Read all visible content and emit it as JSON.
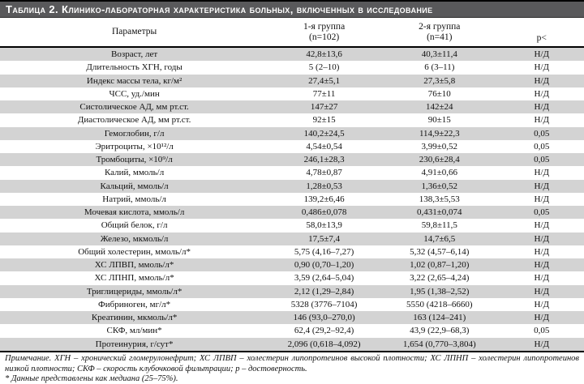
{
  "title": "Таблица 2. Клинико-лабораторная характеристика больных, включенных в исследование",
  "colors": {
    "title_bar": "#59595b",
    "stripe": "#d3d3d3",
    "rule": "#000000"
  },
  "table": {
    "headers": {
      "param": "Параметры",
      "group1_line1": "1-я группа",
      "group1_line2": "(n=102)",
      "group2_line1": "2-я группа",
      "group2_line2": "(n=41)",
      "p": "р<"
    },
    "rows": [
      {
        "param": "Возраст, лет",
        "group1": "42,8±13,6",
        "group2": "40,3±11,4",
        "p": "Н/Д"
      },
      {
        "param": "Длительность ХГН, годы",
        "group1": "5 (2–10)",
        "group2": "6 (3–11)",
        "p": "Н/Д"
      },
      {
        "param": "Индекс массы тела, кг/м²",
        "group1": "27,4±5,1",
        "group2": "27,3±5,8",
        "p": "Н/Д"
      },
      {
        "param": "ЧСС, уд./мин",
        "group1": "77±11",
        "group2": "76±10",
        "p": "Н/Д"
      },
      {
        "param": "Систолическое АД, мм рт.ст.",
        "group1": "147±27",
        "group2": "142±24",
        "p": "Н/Д"
      },
      {
        "param": "Диастолическое АД, мм рт.ст.",
        "group1": "92±15",
        "group2": "90±15",
        "p": "Н/Д"
      },
      {
        "param": "Гемоглобин, г/л",
        "group1": "140,2±24,5",
        "group2": "114,9±22,3",
        "p": "0,05"
      },
      {
        "param": "Эритроциты, ×10¹²/л",
        "group1": "4,54±0,54",
        "group2": "3,99±0,52",
        "p": "0,05"
      },
      {
        "param": "Тромбоциты, ×10⁹/л",
        "group1": "246,1±28,3",
        "group2": "230,6±28,4",
        "p": "0,05"
      },
      {
        "param": "Калий, ммоль/л",
        "group1": "4,78±0,87",
        "group2": "4,91±0,66",
        "p": "Н/Д"
      },
      {
        "param": "Кальций, ммоль/л",
        "group1": "1,28±0,53",
        "group2": "1,36±0,52",
        "p": "Н/Д"
      },
      {
        "param": "Натрий, ммоль/л",
        "group1": "139,2±6,46",
        "group2": "138,3±5,53",
        "p": "Н/Д"
      },
      {
        "param": "Мочевая кислота, ммоль/л",
        "group1": "0,486±0,078",
        "group2": "0,431±0,074",
        "p": "0,05"
      },
      {
        "param": "Общий белок, г/л",
        "group1": "58,0±13,9",
        "group2": "59,8±11,5",
        "p": "Н/Д"
      },
      {
        "param": "Железо, мкмоль/л",
        "group1": "17,5±7,4",
        "group2": "14,7±6,5",
        "p": "Н/Д"
      },
      {
        "param": "Общий холестерин, ммоль/л*",
        "group1": "5,75 (4,16–7,27)",
        "group2": "5,32 (4,57–6,14)",
        "p": "Н/Д"
      },
      {
        "param": "ХС ЛПВП, ммоль/л*",
        "group1": "0,90 (0,70–1,20)",
        "group2": "1,02 (0,87–1,20)",
        "p": "Н/Д"
      },
      {
        "param": "ХС ЛПНП, ммоль/л*",
        "group1": "3,59 (2,64–5,04)",
        "group2": "3,22 (2,65–4,24)",
        "p": "Н/Д"
      },
      {
        "param": "Триглицериды, ммоль/л*",
        "group1": "2,12 (1,29–2,84)",
        "group2": "1,95 (1,38–2,52)",
        "p": "Н/Д"
      },
      {
        "param": "Фибриноген, мг/л*",
        "group1": "5328 (3776–7104)",
        "group2": "5550 (4218–6660)",
        "p": "Н/Д"
      },
      {
        "param": "Креатинин, мкмоль/л*",
        "group1": "146 (93,0–270,0)",
        "group2": "163 (124–241)",
        "p": "Н/Д"
      },
      {
        "param": "СКФ, мл/мин*",
        "group1": "62,4 (29,2–92,4)",
        "group2": "43,9 (22,9–68,3)",
        "p": "0,05"
      },
      {
        "param": "Протеинурия, г/сут*",
        "group1": "2,096 (0,618–4,092)",
        "group2": "1,654 (0,770–3,804)",
        "p": "Н/Д"
      }
    ]
  },
  "notes": {
    "note1": "Примечание. ХГН – хронический гломерулонефрит; ХС ЛПВП – холестерин липопротеинов высокой плотности; ХС ЛПНП – холестерин липопротеинов низкой плотности; СКФ – скорость клубочковой фильтрации; р – достоверность.",
    "note2": "* Данные представлены как медиана (25–75%)."
  }
}
